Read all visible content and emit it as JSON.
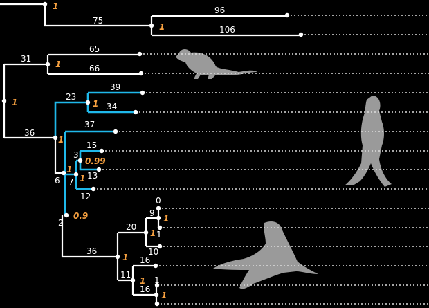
{
  "colors": {
    "branch": "#ffffff",
    "highlight": "#1fb8ea",
    "support": "#f5a040",
    "silhouette": "#9a9a9a"
  },
  "silhouettes": [
    "rat-icon",
    "human-icon",
    "sea-lion-icon"
  ],
  "branch_labels": [
    "96",
    "75",
    "106",
    "65",
    "31",
    "66",
    "39",
    "23",
    "34",
    "37",
    "36",
    "15",
    "3",
    "13",
    "6",
    "7",
    "12",
    "2",
    "0",
    "9",
    "20",
    "1",
    "10",
    "36",
    "16",
    "11",
    "1",
    "16"
  ],
  "support_values": [
    "1",
    "1",
    "1",
    "1",
    "1",
    "1",
    "1",
    "0.99",
    "1",
    "0.9",
    "1",
    "1",
    "1",
    "1",
    "1"
  ]
}
